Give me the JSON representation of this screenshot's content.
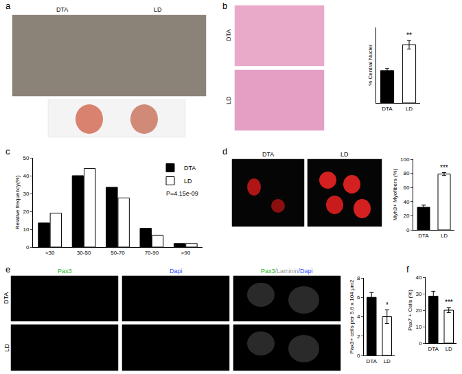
{
  "figure": {
    "panel_labels": [
      "a",
      "b",
      "c",
      "d",
      "e",
      "f"
    ],
    "a": {
      "image_labels": [
        "DTA",
        "LD"
      ]
    },
    "b": {
      "image_labels": [
        "DTA",
        "LD"
      ]
    },
    "d": {
      "image_labels": [
        "DTA",
        "LD"
      ]
    },
    "e": {
      "row_labels": [
        "DTA",
        "LD"
      ],
      "column_labels": [
        [
          {
            "text": "Pax3",
            "color": "#22bb22"
          }
        ],
        [
          {
            "text": "Dapi",
            "color": "#3355ff"
          }
        ],
        [
          {
            "text": "Pax3",
            "color": "#22bb22"
          },
          {
            "text": "/Laminin",
            "color": "#999999"
          },
          {
            "text": "/Dapi",
            "color": "#3355ff"
          }
        ]
      ]
    }
  },
  "chart_data": [
    {
      "type": "bar",
      "categories": [
        "DTA",
        "LD"
      ],
      "values": [
        30,
        54
      ],
      "errors": [
        2,
        4
      ],
      "colors": [
        "#000000",
        "#ffffff"
      ],
      "y_label": "% Central Nuclei",
      "ylim": [
        0,
        70
      ],
      "tick_labels": "x",
      "annotations": [
        {
          "text": "**",
          "category": "LD"
        }
      ]
    },
    {
      "type": "bar",
      "categories": [
        "<30",
        "30-50",
        "50-70",
        "70-90",
        ">90"
      ],
      "series": [
        {
          "name": "DTA",
          "color": "#000000",
          "values": [
            13.5,
            40,
            33.5,
            10.5,
            2
          ]
        },
        {
          "name": "LD",
          "color": "#ffffff",
          "values": [
            19,
            44,
            27.5,
            6.5,
            2
          ]
        }
      ],
      "y_label": "Relative frequency(%)",
      "ylim": [
        0,
        50
      ],
      "yticks": [
        0,
        10,
        20,
        30,
        40,
        50
      ],
      "legend": "top right",
      "annotations": [
        {
          "text": "P=4.15e-09"
        }
      ]
    },
    {
      "type": "bar",
      "categories": [
        "DTA",
        "LD"
      ],
      "values": [
        32,
        79
      ],
      "errors": [
        3,
        2
      ],
      "colors": [
        "#000000",
        "#ffffff"
      ],
      "y_label": "Myh3+ Myofibers (%)",
      "ylim": [
        0,
        100
      ],
      "yticks": [
        0,
        20,
        40,
        60,
        80,
        100
      ],
      "annotations": [
        {
          "text": "***",
          "category": "LD"
        }
      ]
    },
    {
      "type": "bar",
      "categories": [
        "DTA",
        "LD"
      ],
      "values": [
        6,
        4
      ],
      "errors": [
        0.5,
        0.7
      ],
      "colors": [
        "#000000",
        "#ffffff"
      ],
      "y_label": "Pax3+ cells per 5.6 x 104 μm2",
      "ylim": [
        0,
        8
      ],
      "yticks": [
        0,
        2,
        4,
        6,
        8
      ],
      "annotations": [
        {
          "text": "*",
          "category": "LD"
        }
      ]
    },
    {
      "type": "bar",
      "categories": [
        "DTA",
        "LD"
      ],
      "values": [
        28.5,
        20
      ],
      "errors": [
        3,
        1.5
      ],
      "colors": [
        "#000000",
        "#ffffff"
      ],
      "y_label": "Pax7 + Cells (%)",
      "ylim": [
        0,
        40
      ],
      "yticks": [
        0,
        10,
        20,
        30,
        40
      ],
      "annotations": [
        {
          "text": "***",
          "category": "LD"
        }
      ]
    }
  ]
}
